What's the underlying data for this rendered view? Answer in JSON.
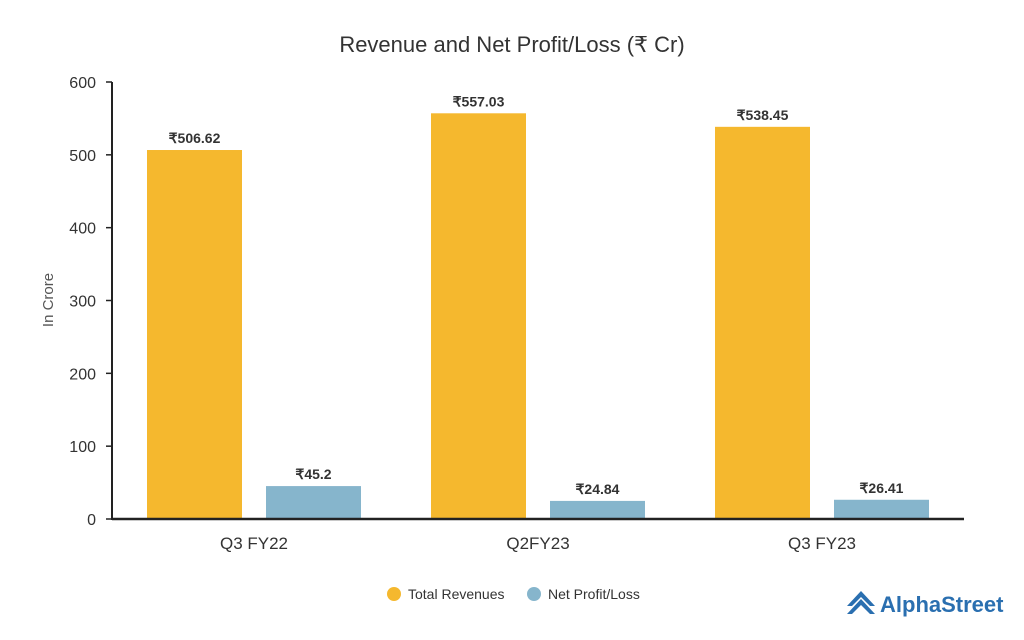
{
  "chart_data": {
    "type": "bar",
    "title": "Revenue and Net Profit/Loss (₹ Cr)",
    "ylabel": "In Crore",
    "xlabel": "",
    "ylim": [
      0,
      600
    ],
    "yticks": [
      0,
      100,
      200,
      300,
      400,
      500,
      600
    ],
    "categories": [
      "Q3 FY22",
      "Q2FY23",
      "Q3 FY23"
    ],
    "series": [
      {
        "name": "Total Revenues",
        "color": "#f5b82e",
        "values": [
          506.62,
          557.03,
          538.45
        ],
        "labels": [
          "₹506.62",
          "₹557.03",
          "₹538.45"
        ]
      },
      {
        "name": "Net Profit/Loss",
        "color": "#86b5cc",
        "values": [
          45.2,
          24.84,
          26.41
        ],
        "labels": [
          "₹45.2",
          "₹24.84",
          "₹26.41"
        ]
      }
    ],
    "legend_position": "bottom-center",
    "grid": false
  },
  "brand": {
    "name": "AlphaStreet",
    "icon": "alphastreet-logo-icon",
    "color": "#2a6fb0"
  }
}
